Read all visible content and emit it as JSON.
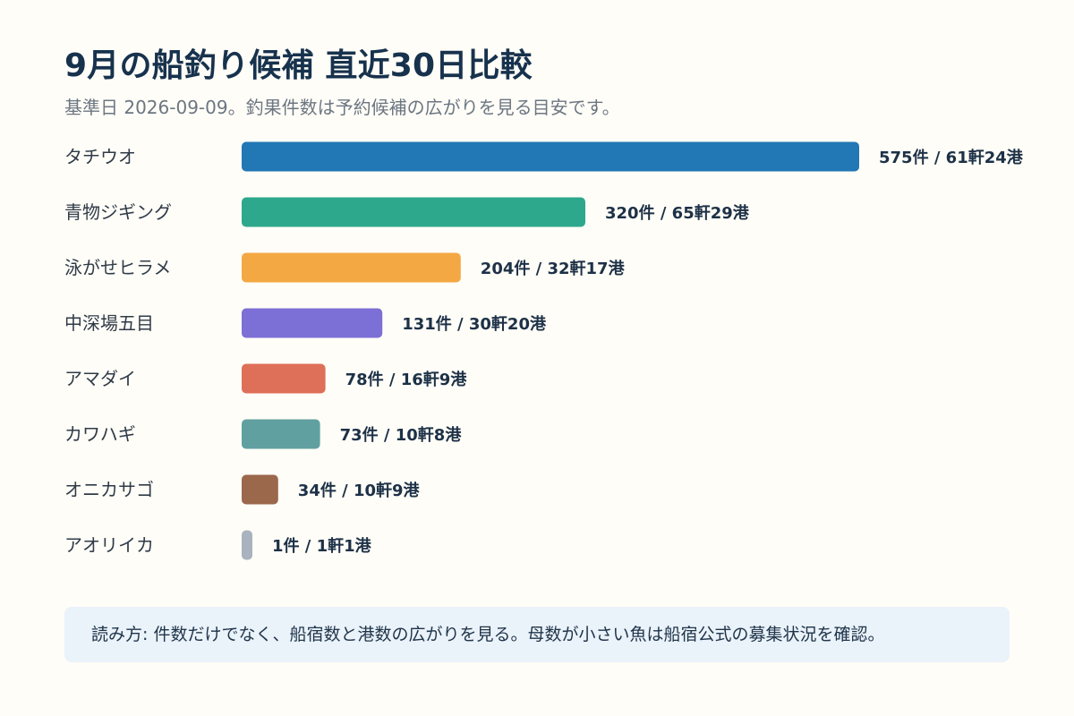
{
  "header": {
    "title": "9月の船釣り候補 直近30日比較",
    "subtitle": "基準日 2026-09-09。釣果件数は予約候補の広がりを見る目安です。"
  },
  "note": {
    "text": "読み方: 件数だけでなく、船宿数と港数の広がりを見る。母数が小さい魚は船宿公式の募集状況を確認。"
  },
  "chart_data": {
    "type": "bar",
    "orientation": "horizontal",
    "title": "9月の船釣り候補 直近30日比較",
    "subtitle": "基準日 2026-09-09。釣果件数は予約候補の広がりを見る目安です。",
    "categories": [
      "タチウオ",
      "青物ジギング",
      "泳がせヒラメ",
      "中深場五目",
      "アマダイ",
      "カワハギ",
      "オニカサゴ",
      "アオリイカ"
    ],
    "values": [
      575,
      320,
      204,
      131,
      78,
      73,
      34,
      1
    ],
    "value_labels": [
      "575件 / 61軒24港",
      "320件 / 65軒29港",
      "204件 / 32軒17港",
      "131件 / 30軒20港",
      "78件 / 16軒9港",
      "73件 / 10軒8港",
      "34件 / 10軒9港",
      "1件 / 1軒1港"
    ],
    "colors": [
      "#2277b5",
      "#2ea88c",
      "#f3a843",
      "#7c6fd6",
      "#de6f58",
      "#61a0a1",
      "#9b684c",
      "#a9b3bf"
    ],
    "xlim": [
      0,
      575
    ],
    "grid": false,
    "legend": "none"
  }
}
